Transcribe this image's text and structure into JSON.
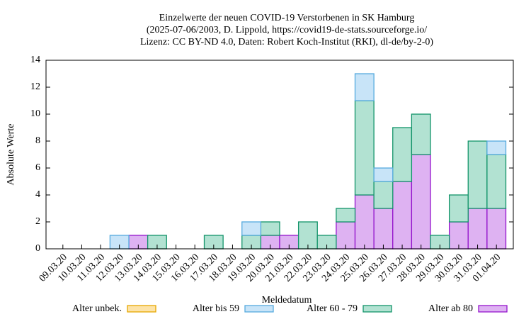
{
  "chart_data": {
    "type": "bar",
    "stacked": true,
    "title": [
      "Einzelwerte der neuen COVID-19 Verstorbenen in SK Hamburg",
      "(2025-07-06/2003, D. Lippold, https://covid19-de-stats.sourceforge.io/",
      "Lizenz: CC BY-ND 4.0, Daten: Robert Koch-Institut (RKI), dl-de/by-2-0)"
    ],
    "xlabel": "Meldedatum",
    "ylabel": "Absolute Werte",
    "categories": [
      "09.03.20",
      "10.03.20",
      "11.03.20",
      "12.03.20",
      "13.03.20",
      "14.03.20",
      "15.03.20",
      "16.03.20",
      "17.03.20",
      "18.03.20",
      "19.03.20",
      "20.03.20",
      "21.03.20",
      "22.03.20",
      "23.03.20",
      "24.03.20",
      "25.03.20",
      "26.03.20",
      "27.03.20",
      "28.03.20",
      "29.03.20",
      "30.03.20",
      "31.03.20",
      "01.04.20"
    ],
    "series": [
      {
        "name": "Alter unbek.",
        "color": "#fde3a7",
        "edge": "#e6a800",
        "values": [
          0,
          0,
          0,
          0,
          0,
          0,
          0,
          0,
          0,
          0,
          0,
          0,
          0,
          0,
          0,
          0,
          0,
          0,
          0,
          0,
          0,
          0,
          0,
          0
        ]
      },
      {
        "name": "Alter bis 59",
        "color": "#c8e4f8",
        "edge": "#56aade",
        "values": [
          0,
          0,
          0,
          1,
          0,
          0,
          0,
          0,
          0,
          0,
          1,
          0,
          0,
          0,
          0,
          0,
          2,
          1,
          0,
          0,
          0,
          0,
          0,
          1
        ]
      },
      {
        "name": "Alter 60 - 79",
        "color": "#b2e2d2",
        "edge": "#13946a",
        "values": [
          0,
          0,
          0,
          0,
          0,
          1,
          0,
          0,
          1,
          0,
          1,
          1,
          0,
          2,
          1,
          1,
          7,
          2,
          4,
          3,
          1,
          2,
          5,
          4
        ]
      },
      {
        "name": "Alter ab 80",
        "color": "#deb2f2",
        "edge": "#9414cc",
        "values": [
          0,
          0,
          0,
          0,
          1,
          0,
          0,
          0,
          0,
          0,
          0,
          1,
          1,
          0,
          0,
          2,
          4,
          3,
          5,
          7,
          0,
          2,
          3,
          3
        ]
      }
    ],
    "ylim": [
      0,
      14
    ],
    "yticks": [
      0,
      2,
      4,
      6,
      8,
      10,
      12,
      14
    ],
    "legend": "bottom"
  }
}
